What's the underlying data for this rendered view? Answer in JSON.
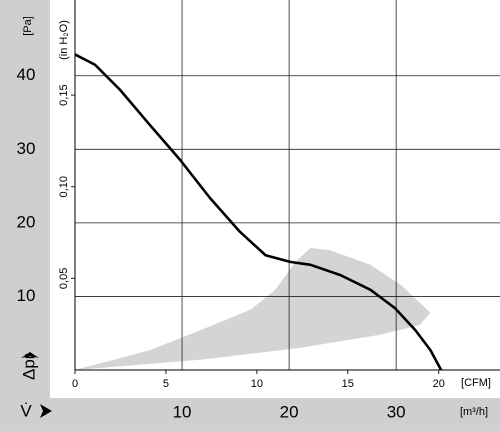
{
  "chart_data": {
    "type": "line",
    "y_unit": "[Pa]",
    "y2_unit": "(in H₂O)",
    "x_unit": "[m³/h]",
    "x2_unit": "[CFM]",
    "y_symbol": "Δpr",
    "x_symbol": "V̇",
    "xlim": [
      0,
      39.7
    ],
    "xticks": [
      10,
      20,
      30
    ],
    "x2lim": [
      0,
      23.37
    ],
    "x2ticks": [
      0,
      5,
      10,
      15,
      20
    ],
    "ylim": [
      0,
      50.3
    ],
    "yticks": [
      10,
      20,
      30,
      40
    ],
    "y2lim": [
      0,
      0.2019
    ],
    "y2ticks": [
      {
        "value": 0.05,
        "label": "0,05"
      },
      {
        "value": 0.1,
        "label": "0,10"
      },
      {
        "value": 0.15,
        "label": "0,15"
      }
    ],
    "grid": true,
    "series": [
      {
        "color": "#000000",
        "x": [
          0,
          1.87,
          4.2,
          7.0,
          9.8,
          12.6,
          15.4,
          17.8,
          20.1,
          22.0,
          24.8,
          27.6,
          29.9,
          31.8,
          33.2,
          34.2
        ],
        "values": [
          42.9,
          41.5,
          38.1,
          33.3,
          28.6,
          23.4,
          18.8,
          15.6,
          14.7,
          14.3,
          12.9,
          10.9,
          8.4,
          5.4,
          2.7,
          0
        ]
      }
    ],
    "region": {
      "color": "#d4d4d4",
      "x": [
        0,
        7.0,
        11.7,
        16.4,
        18.7,
        20.6,
        22.0,
        23.8,
        27.6,
        30.4,
        33.2,
        32.2,
        28.5,
        21.0,
        11.7,
        0
      ],
      "values": [
        0,
        2.7,
        5.4,
        8.2,
        10.9,
        14.7,
        16.6,
        16.3,
        14.3,
        11.6,
        7.8,
        6.1,
        4.8,
        3.0,
        1.4,
        0
      ]
    }
  }
}
